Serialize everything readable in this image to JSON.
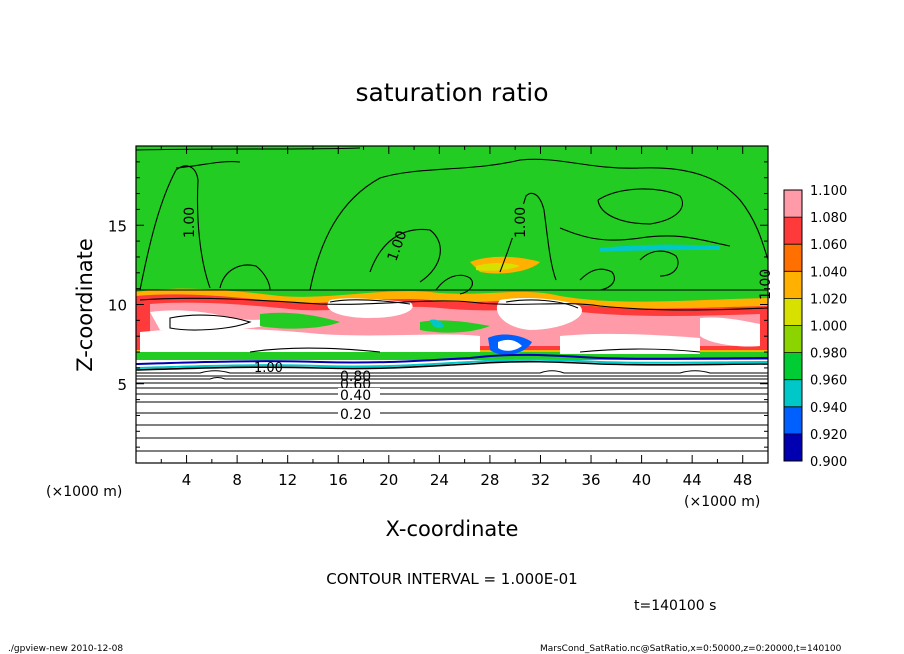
{
  "chart_data": {
    "type": "heatmap",
    "title": "saturation ratio",
    "xlabel": "X-coordinate",
    "ylabel": "Z-coordinate",
    "x_units_left": "(×1000 m)",
    "x_units_right": "(×1000 m)",
    "xlim": [
      0,
      50
    ],
    "ylim": [
      0,
      20
    ],
    "x_ticks": [
      4,
      8,
      12,
      16,
      20,
      24,
      28,
      32,
      36,
      40,
      44,
      48
    ],
    "y_ticks": [
      5,
      10,
      15
    ],
    "colorbar": {
      "levels": [
        "1.100",
        "1.080",
        "1.060",
        "1.040",
        "1.020",
        "1.000",
        "0.980",
        "0.960",
        "0.940",
        "0.920",
        "0.900"
      ],
      "colors": [
        "#ff9aa8",
        "#ff3a3a",
        "#ff7000",
        "#ffb000",
        "#d8e000",
        "#8cd400",
        "#00cc33",
        "#00c8c8",
        "#0060ff",
        "#0000b0",
        "#6a00b0"
      ]
    },
    "contour_labels": [
      "1.00",
      "1.00",
      "1.00",
      "1.00",
      "0.80",
      "0.60",
      "0.40",
      "0.20"
    ],
    "contour_interval_text": "CONTOUR INTERVAL = 1.000E-01",
    "time_text": "t=140100 s",
    "footer_left": "./gpview-new  2010-12-08",
    "footer_right": "MarsCond_SatRatio.nc@SatRatio,x=0:50000,z=0:20000,t=140100"
  }
}
